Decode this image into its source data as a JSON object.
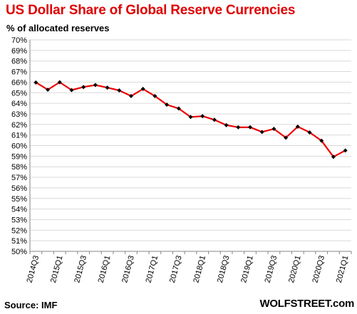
{
  "chart_data": {
    "type": "line",
    "title": "US Dollar Share of Global  Reserve Currencies",
    "ylabel": "% of allocated reserves",
    "xlabel": "",
    "ylim": [
      50,
      70
    ],
    "y_tick_step": 1,
    "y_tick_suffix": "%",
    "grid": {
      "horizontal": true,
      "vertical": false
    },
    "legend": "none",
    "x": [
      "2014Q3",
      "2014Q4",
      "2015Q1",
      "2015Q2",
      "2015Q3",
      "2015Q4",
      "2016Q1",
      "2016Q2",
      "2016Q3",
      "2016Q4",
      "2017Q1",
      "2017Q2",
      "2017Q3",
      "2017Q4",
      "2018Q1",
      "2018Q2",
      "2018Q3",
      "2018Q4",
      "2019Q1",
      "2019Q2",
      "2019Q3",
      "2019Q4",
      "2020Q1",
      "2020Q2",
      "2020Q3",
      "2020Q4",
      "2021Q1"
    ],
    "x_tick_labels": [
      "2014Q3",
      "2015Q1",
      "2015Q3",
      "2016Q1",
      "2016Q3",
      "2017Q1",
      "2017Q3",
      "2018Q1",
      "2018Q3",
      "2019Q1",
      "2019Q3",
      "2020Q1",
      "2020Q3",
      "2021Q1"
    ],
    "series": [
      {
        "values": [
          65.97,
          65.29,
          65.99,
          65.25,
          65.54,
          65.73,
          65.48,
          65.22,
          64.69,
          65.36,
          64.69,
          63.87,
          63.51,
          62.71,
          62.79,
          62.44,
          61.94,
          61.73,
          61.74,
          61.29,
          61.58,
          60.75,
          61.79,
          61.25,
          60.46,
          58.94,
          59.54
        ]
      }
    ],
    "colors": {
      "line": "#ee0000",
      "marker": "#000000",
      "grid": "#d9d9d9",
      "axis": "#868686"
    }
  },
  "header": {
    "title": "US Dollar Share of Global  Reserve Currencies",
    "unit_label": "% of allocated reserves"
  },
  "footer": {
    "source": "Source: IMF",
    "brand": "WOLFSTREET.com"
  }
}
